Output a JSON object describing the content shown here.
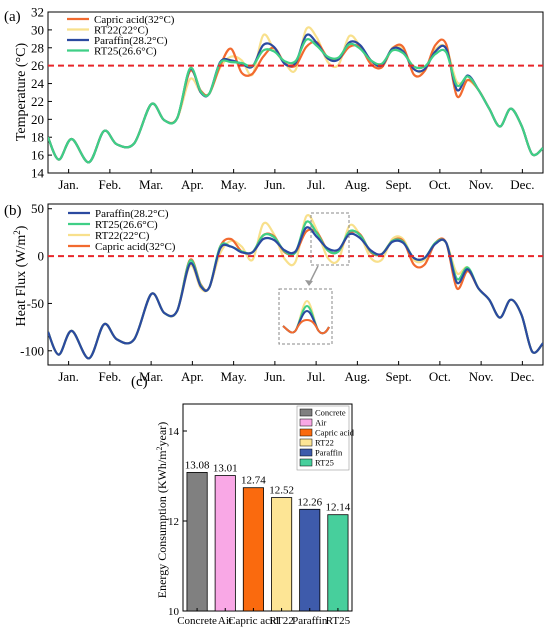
{
  "chart_data": [
    {
      "type": "line",
      "panel_label": "(a)",
      "ylabel": "Temperature (°C)",
      "ylim": [
        14,
        32
      ],
      "yticks": [
        14,
        16,
        18,
        20,
        22,
        24,
        26,
        28,
        30,
        32
      ],
      "months": [
        "Jan.",
        "Feb.",
        "Mar.",
        "Apr.",
        "May.",
        "Jun.",
        "Jul.",
        "Aug.",
        "Sept.",
        "Oct.",
        "Nov.",
        "Dec."
      ],
      "reference_line": {
        "y": 26,
        "color": "#e8262a",
        "style": "dashed"
      },
      "x": [
        0,
        0.25,
        0.55,
        0.95,
        1.3,
        1.6,
        2.0,
        2.4,
        2.7,
        3.0,
        3.3,
        3.55,
        3.75,
        4.0,
        4.25,
        4.5,
        4.75,
        5.0,
        5.25,
        5.5,
        5.75,
        6.0,
        6.25,
        6.5,
        6.75,
        7.0,
        7.25,
        7.5,
        7.75,
        8.0,
        8.25,
        8.5,
        8.75,
        9.0,
        9.25,
        9.5,
        9.75,
        10.0,
        10.25,
        10.5,
        10.75,
        11.0,
        11.25,
        11.5
      ],
      "series": [
        {
          "name": "Capric acid(32°C)",
          "color": "#f26a2f",
          "values": [
            18.0,
            15.5,
            17.8,
            15.2,
            18.7,
            17.2,
            17.3,
            21.7,
            19.9,
            20.1,
            25.4,
            23.2,
            22.9,
            26.0,
            27.9,
            25.2,
            25.1,
            27.0,
            28.0,
            26.3,
            26.0,
            28.1,
            28.6,
            26.9,
            26.7,
            28.1,
            28.1,
            26.2,
            25.8,
            27.9,
            28.1,
            25.0,
            25.4,
            28.3,
            28.4,
            22.6,
            24.4,
            23.3,
            21.2,
            19.2,
            21.2,
            19.3,
            16.1,
            16.8
          ]
        },
        {
          "name": "RT22(22°C)",
          "color": "#f8e08c",
          "values": [
            18.0,
            15.5,
            17.8,
            15.2,
            18.7,
            17.2,
            17.3,
            21.7,
            19.9,
            20.1,
            24.5,
            23.0,
            22.9,
            25.8,
            27.0,
            26.6,
            25.0,
            29.4,
            27.8,
            26.3,
            25.5,
            30.1,
            29.1,
            26.4,
            26.1,
            29.3,
            28.2,
            26.6,
            25.8,
            28.0,
            27.8,
            25.7,
            25.4,
            27.8,
            28.0,
            24.2,
            24.4,
            23.3,
            21.2,
            19.2,
            21.2,
            19.3,
            16.1,
            16.8
          ]
        },
        {
          "name": "Paraffin(28.2°C)",
          "color": "#2b4aa0",
          "values": [
            18.0,
            15.5,
            17.8,
            15.2,
            18.7,
            17.2,
            17.3,
            21.7,
            19.9,
            20.1,
            25.6,
            23.0,
            22.9,
            26.4,
            26.6,
            26.2,
            25.9,
            28.3,
            28.1,
            26.2,
            26.3,
            29.4,
            28.5,
            26.8,
            26.7,
            28.6,
            28.3,
            26.6,
            26.0,
            27.9,
            27.6,
            25.6,
            25.6,
            27.6,
            27.9,
            23.3,
            24.9,
            23.3,
            21.2,
            19.2,
            21.2,
            19.3,
            16.1,
            16.8
          ]
        },
        {
          "name": "RT25(26.6°C)",
          "color": "#3fcf86",
          "values": [
            18.0,
            15.5,
            17.8,
            15.2,
            18.7,
            17.2,
            17.3,
            21.7,
            19.9,
            20.1,
            25.7,
            23.1,
            22.9,
            26.3,
            26.4,
            26.3,
            26.0,
            27.7,
            27.6,
            26.5,
            26.5,
            28.9,
            28.2,
            27.0,
            26.9,
            28.4,
            27.9,
            26.6,
            26.2,
            27.7,
            27.4,
            25.9,
            25.9,
            27.3,
            27.5,
            23.8,
            24.8,
            23.3,
            21.2,
            19.2,
            21.2,
            19.3,
            16.1,
            16.8
          ]
        }
      ]
    },
    {
      "type": "line",
      "panel_label": "(b)",
      "ylabel": "Heat Flux (W/m",
      "ylabel_sup": "2",
      "ylabel_end": ")",
      "ylim": [
        -115,
        55
      ],
      "yticks": [
        -100,
        -50,
        0,
        50
      ],
      "months": [
        "Jan.",
        "Feb.",
        "Mar.",
        "Apr.",
        "May.",
        "Jun.",
        "Jul.",
        "Aug.",
        "Sept.",
        "Oct.",
        "Nov.",
        "Dec."
      ],
      "reference_line": {
        "y": 0,
        "color": "#e8262a",
        "style": "dashed"
      },
      "x": [
        0,
        0.25,
        0.55,
        0.95,
        1.3,
        1.6,
        2.0,
        2.4,
        2.7,
        3.0,
        3.3,
        3.55,
        3.75,
        4.0,
        4.25,
        4.5,
        4.75,
        5.0,
        5.25,
        5.5,
        5.75,
        6.0,
        6.25,
        6.5,
        6.75,
        7.0,
        7.25,
        7.5,
        7.75,
        8.0,
        8.25,
        8.5,
        8.75,
        9.0,
        9.25,
        9.5,
        9.75,
        10.0,
        10.25,
        10.5,
        10.75,
        11.0,
        11.25,
        11.5
      ],
      "series": [
        {
          "name": "Paraffin(28.2°C)",
          "color": "#2b4aa0",
          "values": [
            -80,
            -104,
            -79,
            -108,
            -72,
            -88,
            -88,
            -40,
            -60,
            -58,
            -8,
            -32,
            -33,
            8,
            10,
            4,
            4,
            18,
            17,
            6,
            5,
            30,
            20,
            8,
            7,
            23,
            19,
            6,
            2,
            15,
            14,
            -2,
            -2,
            13,
            14,
            -28,
            -14,
            -34,
            -46,
            -65,
            -46,
            -62,
            -101,
            -92
          ]
        },
        {
          "name": "RT25(26.6°C)",
          "color": "#3fcf86",
          "values": [
            -80,
            -104,
            -79,
            -108,
            -72,
            -88,
            -88,
            -40,
            -60,
            -58,
            -5,
            -31,
            -33,
            10,
            10,
            5,
            4,
            22,
            20,
            5,
            4,
            36,
            24,
            6,
            5,
            26,
            22,
            5,
            2,
            16,
            15,
            -2,
            -2,
            14,
            14,
            -24,
            -12,
            -34,
            -46,
            -65,
            -46,
            -62,
            -101,
            -92
          ]
        },
        {
          "name": "RT22(22°C)",
          "color": "#f8e08c",
          "values": [
            -80,
            -104,
            -79,
            -108,
            -72,
            -88,
            -88,
            -40,
            -60,
            -58,
            -10,
            -34,
            -33,
            3,
            16,
            10,
            -4,
            34,
            23,
            -3,
            -6,
            42,
            27,
            -2,
            -4,
            32,
            22,
            -2,
            -4,
            18,
            18,
            -4,
            -4,
            14,
            14,
            -18,
            -12,
            -34,
            -46,
            -65,
            -46,
            -62,
            -101,
            -92
          ]
        },
        {
          "name": "Capric acid(32°C)",
          "color": "#f26a2f",
          "values": [
            -80,
            -104,
            -79,
            -108,
            -72,
            -88,
            -88,
            -40,
            -60,
            -58,
            -4,
            -30,
            -33,
            10,
            18,
            5,
            4,
            22,
            21,
            4,
            4,
            26,
            25,
            6,
            5,
            24,
            23,
            4,
            2,
            16,
            16,
            -9,
            -9,
            14,
            14,
            -34,
            -16,
            -34,
            -46,
            -65,
            -46,
            -62,
            -101,
            -92
          ]
        }
      ]
    },
    {
      "type": "bar",
      "panel_label": "(c)",
      "ylabel": "Energy Consumption (KWh/m",
      "ylabel_sup": "2",
      "ylabel_end": "year)",
      "ylim": [
        10,
        14.6
      ],
      "yticks": [
        10,
        12,
        14
      ],
      "categories": [
        "Concrete",
        "Air",
        "Capric acid",
        "RT22",
        "Paraffin",
        "RT25"
      ],
      "values": [
        13.08,
        13.01,
        12.74,
        12.52,
        12.26,
        12.14
      ],
      "value_labels": [
        "13.08",
        "13.01",
        "12.74",
        "12.52",
        "12.26",
        "12.14"
      ],
      "colors": [
        "#808080",
        "#f9a8e6",
        "#fa6a0e",
        "#fde595",
        "#3e5bab",
        "#47cf9c"
      ],
      "legend": [
        "Concrete",
        "Air",
        "Capric acid",
        "RT22",
        "Paraffin",
        "RT25"
      ]
    }
  ]
}
